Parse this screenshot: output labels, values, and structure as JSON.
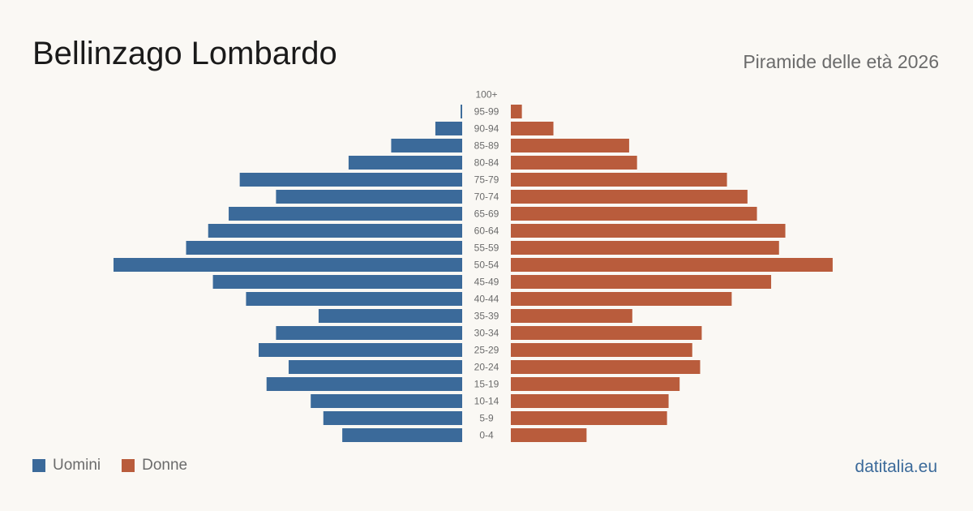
{
  "header": {
    "title": "Bellinzago Lombardo",
    "subtitle": "Piramide delle età 2026"
  },
  "colors": {
    "male": "#3b6a9a",
    "female": "#b95c3c",
    "tick": "#6b6b6b"
  },
  "legend": {
    "male_label": "Uomini",
    "female_label": "Donne"
  },
  "footer": {
    "source": "datitalia.eu"
  },
  "chart_data": {
    "type": "bar",
    "orientation": "horizontal-pyramid",
    "categories": [
      "100+",
      "95-99",
      "90-94",
      "85-89",
      "80-84",
      "75-79",
      "70-74",
      "65-69",
      "60-64",
      "55-59",
      "50-54",
      "45-49",
      "40-44",
      "35-39",
      "30-34",
      "25-29",
      "20-24",
      "15-19",
      "10-14",
      "5-9",
      "0-4"
    ],
    "series": [
      {
        "name": "Uomini",
        "values": [
          0,
          1,
          17,
          45,
          72,
          141,
          118,
          148,
          161,
          175,
          221,
          158,
          137,
          91,
          118,
          129,
          110,
          124,
          96,
          88,
          76
        ]
      },
      {
        "name": "Donne",
        "values": [
          0,
          7,
          27,
          75,
          80,
          137,
          150,
          156,
          174,
          170,
          204,
          165,
          140,
          77,
          121,
          115,
          120,
          107,
          100,
          99,
          48
        ]
      }
    ],
    "max_value": 221,
    "grid": false,
    "legend_position": "bottom-left"
  }
}
